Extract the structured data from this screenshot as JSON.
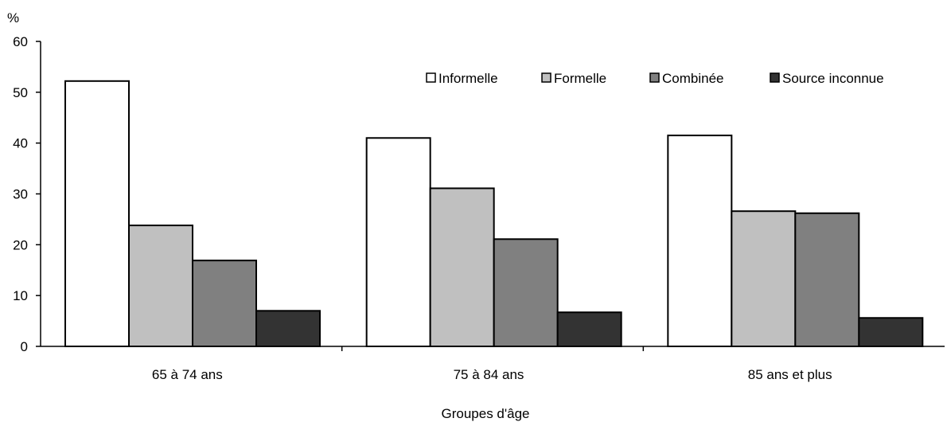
{
  "chart_data": {
    "type": "bar",
    "title": "",
    "ylabel": "%",
    "xlabel": "Groupes d'âge",
    "ylim": [
      0,
      60
    ],
    "yticks": [
      "0",
      "10",
      "20",
      "30",
      "40",
      "50",
      "60"
    ],
    "categories": [
      "65 à 74 ans",
      "75 à 84 ans",
      "85 ans et plus"
    ],
    "series": [
      {
        "name": "Informelle",
        "color": "#ffffff",
        "values": [
          52.2,
          41.0,
          41.5
        ]
      },
      {
        "name": "Formelle",
        "color": "#c0c0c0",
        "values": [
          23.8,
          31.1,
          26.6
        ]
      },
      {
        "name": "Combinée",
        "color": "#808080",
        "values": [
          16.9,
          21.1,
          26.2
        ]
      },
      {
        "name": "Source inconnue",
        "color": "#333333",
        "values": [
          7.0,
          6.7,
          5.6
        ]
      }
    ],
    "legend_position": "top-right",
    "grid": false
  }
}
